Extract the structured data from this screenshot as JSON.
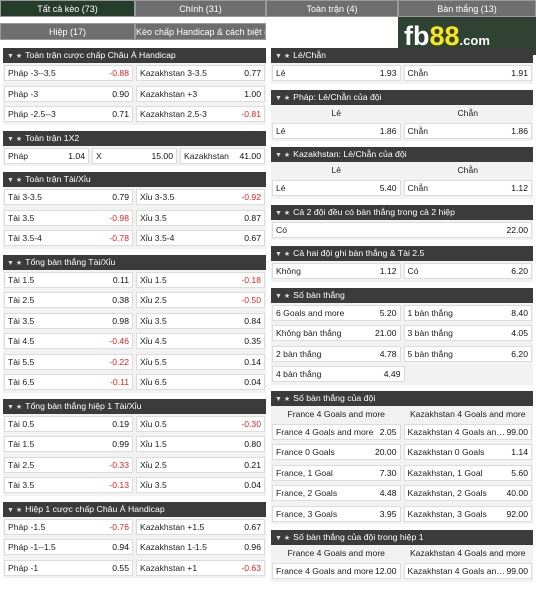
{
  "tabs": [
    {
      "label": "Tất cả kèo (73)"
    },
    {
      "label": "Chính (31)"
    },
    {
      "label": "Toàn trận (4)"
    },
    {
      "label": "Bàn thắng (13)"
    },
    {
      "label": "Hiệp (17)"
    },
    {
      "label": "Kèo chấp Handicap & cách biệt (3)"
    }
  ],
  "logo": {
    "part1": "fb",
    "part2": "88",
    "suffix": ".com"
  },
  "left": [
    {
      "title": "Toàn trận cược chấp Châu Á Handicap",
      "rows": [
        [
          {
            "l": "Pháp -3--3.5",
            "o": "-0.88"
          },
          {
            "l": "Kazakhstan 3-3.5",
            "o": "0.77"
          }
        ],
        [
          {
            "l": "Pháp -3",
            "o": "0.90"
          },
          {
            "l": "Kazakhstan +3",
            "o": "1.00"
          }
        ],
        [
          {
            "l": "Pháp -2.5--3",
            "o": "0.71"
          },
          {
            "l": "Kazakhstan 2.5-3",
            "o": "-0.81"
          }
        ]
      ]
    },
    {
      "title": "Toàn trận 1X2",
      "rows": [
        [
          {
            "l": "Pháp",
            "o": "1.04"
          },
          {
            "l": "X",
            "o": "15.00"
          },
          {
            "l": "Kazakhstan",
            "o": "41.00"
          }
        ]
      ]
    },
    {
      "title": "Toàn trận Tài/Xỉu",
      "rows": [
        [
          {
            "l": "Tài 3-3.5",
            "o": "0.79"
          },
          {
            "l": "Xỉu 3-3.5",
            "o": "-0.92"
          }
        ],
        [
          {
            "l": "Tài 3.5",
            "o": "-0.98"
          },
          {
            "l": "Xỉu 3.5",
            "o": "0.87"
          }
        ],
        [
          {
            "l": "Tài 3.5-4",
            "o": "-0.78"
          },
          {
            "l": "Xỉu 3.5-4",
            "o": "0.67"
          }
        ]
      ]
    },
    {
      "title": "Tổng bàn thắng Tài/Xỉu",
      "rows": [
        [
          {
            "l": "Tài 1.5",
            "o": "0.11"
          },
          {
            "l": "Xỉu 1.5",
            "o": "-0.18"
          }
        ],
        [
          {
            "l": "Tài 2.5",
            "o": "0.38"
          },
          {
            "l": "Xỉu 2.5",
            "o": "-0.50"
          }
        ],
        [
          {
            "l": "Tài 3.5",
            "o": "0.98"
          },
          {
            "l": "Xỉu 3.5",
            "o": "0.84"
          }
        ],
        [
          {
            "l": "Tài 4.5",
            "o": "-0.46"
          },
          {
            "l": "Xỉu 4.5",
            "o": "0.35"
          }
        ],
        [
          {
            "l": "Tài 5.5",
            "o": "-0.22"
          },
          {
            "l": "Xỉu 5.5",
            "o": "0.14"
          }
        ],
        [
          {
            "l": "Tài 6.5",
            "o": "-0.11"
          },
          {
            "l": "Xỉu 6.5",
            "o": "0.04"
          }
        ]
      ]
    },
    {
      "title": "Tổng bàn thắng hiệp 1 Tài/Xỉu",
      "rows": [
        [
          {
            "l": "Tài 0.5",
            "o": "0.19"
          },
          {
            "l": "Xỉu 0.5",
            "o": "-0.30"
          }
        ],
        [
          {
            "l": "Tài 1.5",
            "o": "0.99"
          },
          {
            "l": "Xỉu 1.5",
            "o": "0.80"
          }
        ],
        [
          {
            "l": "Tài 2.5",
            "o": "-0.33"
          },
          {
            "l": "Xỉu 2.5",
            "o": "0.21"
          }
        ],
        [
          {
            "l": "Tài 3.5",
            "o": "-0.13"
          },
          {
            "l": "Xỉu 3.5",
            "o": "0.04"
          }
        ]
      ]
    },
    {
      "title": "Hiệp 1 cược chấp Châu Á Handicap",
      "rows": [
        [
          {
            "l": "Pháp -1.5",
            "o": "-0.76"
          },
          {
            "l": "Kazakhstan +1.5",
            "o": "0.67"
          }
        ],
        [
          {
            "l": "Pháp -1--1.5",
            "o": "0.94"
          },
          {
            "l": "Kazakhstan 1-1.5",
            "o": "0.96"
          }
        ],
        [
          {
            "l": "Pháp -1",
            "o": "0.55"
          },
          {
            "l": "Kazakhstan +1",
            "o": "-0.63"
          }
        ]
      ]
    }
  ],
  "right": [
    {
      "title": "Lẻ/Chẵn",
      "heads": [],
      "rows": [
        [
          {
            "l": "Lẻ",
            "o": "1.93"
          },
          {
            "l": "Chẵn",
            "o": "1.91"
          }
        ]
      ]
    },
    {
      "title": "Pháp: Lẻ/Chẵn của đội",
      "heads": [
        "Lẻ",
        "Chẵn"
      ],
      "rows": [
        [
          {
            "l": "Lẻ",
            "o": "1.86"
          },
          {
            "l": "Chẵn",
            "o": "1.86"
          }
        ]
      ]
    },
    {
      "title": "Kazakhstan: Lẻ/Chẵn của đội",
      "heads": [
        "Lẻ",
        "Chẵn"
      ],
      "rows": [
        [
          {
            "l": "Lẻ",
            "o": "5.40"
          },
          {
            "l": "Chẵn",
            "o": "1.12"
          }
        ]
      ]
    },
    {
      "title": "Cả 2 đội đều có bàn thắng trong cả 2 hiệp",
      "heads": [],
      "rows": [
        [
          {
            "l": "Có",
            "o": "22.00"
          }
        ]
      ]
    },
    {
      "title": "Cả hai đội ghi bàn thắng & Tài 2.5",
      "heads": [],
      "rows": [
        [
          {
            "l": "Không",
            "o": "1.12"
          },
          {
            "l": "Có",
            "o": "6.20"
          }
        ]
      ]
    },
    {
      "title": "Số bàn thắng",
      "heads": [],
      "rows": [
        [
          {
            "l": "6 Goals and more",
            "o": "5.20"
          },
          {
            "l": "1 bàn thắng",
            "o": "8.40"
          }
        ],
        [
          {
            "l": "Không bàn thắng",
            "o": "21.00"
          },
          {
            "l": "3 bàn thắng",
            "o": "4.05"
          }
        ],
        [
          {
            "l": "2 bàn thắng",
            "o": "4.78"
          },
          {
            "l": "5 bàn thắng",
            "o": "6.20"
          }
        ],
        [
          {
            "l": "4 bàn thắng",
            "o": "4.49"
          },
          null
        ]
      ]
    },
    {
      "title": "Số bàn thắng của đội",
      "heads": [
        "France 4 Goals and more",
        "Kazakhstan 4 Goals and more"
      ],
      "rows": [
        [
          {
            "l": "France 4 Goals and more",
            "o": "2.05"
          },
          {
            "l": "Kazakhstan 4 Goals and ...",
            "o": "99.00"
          }
        ],
        [
          {
            "l": "France 0 Goals",
            "o": "20.00"
          },
          {
            "l": "Kazakhstan 0 Goals",
            "o": "1.14"
          }
        ],
        [
          {
            "l": "France, 1 Goal",
            "o": "7.30"
          },
          {
            "l": "Kazakhstan, 1 Goal",
            "o": "5.60"
          }
        ],
        [
          {
            "l": "France, 2 Goals",
            "o": "4.48"
          },
          {
            "l": "Kazakhstan, 2 Goals",
            "o": "40.00"
          }
        ],
        [
          {
            "l": "France, 3 Goals",
            "o": "3.95"
          },
          {
            "l": "Kazakhstan, 3 Goals",
            "o": "92.00"
          }
        ]
      ]
    },
    {
      "title": "Số bàn thắng của đội trong hiệp 1",
      "heads": [
        "France 4 Goals and more",
        "Kazakhstan 4 Goals and more"
      ],
      "rows": [
        [
          {
            "l": "France 4 Goals and more",
            "o": "12.00"
          },
          {
            "l": "Kazakhstan 4 Goals and ...",
            "o": "99.00"
          }
        ]
      ]
    }
  ]
}
